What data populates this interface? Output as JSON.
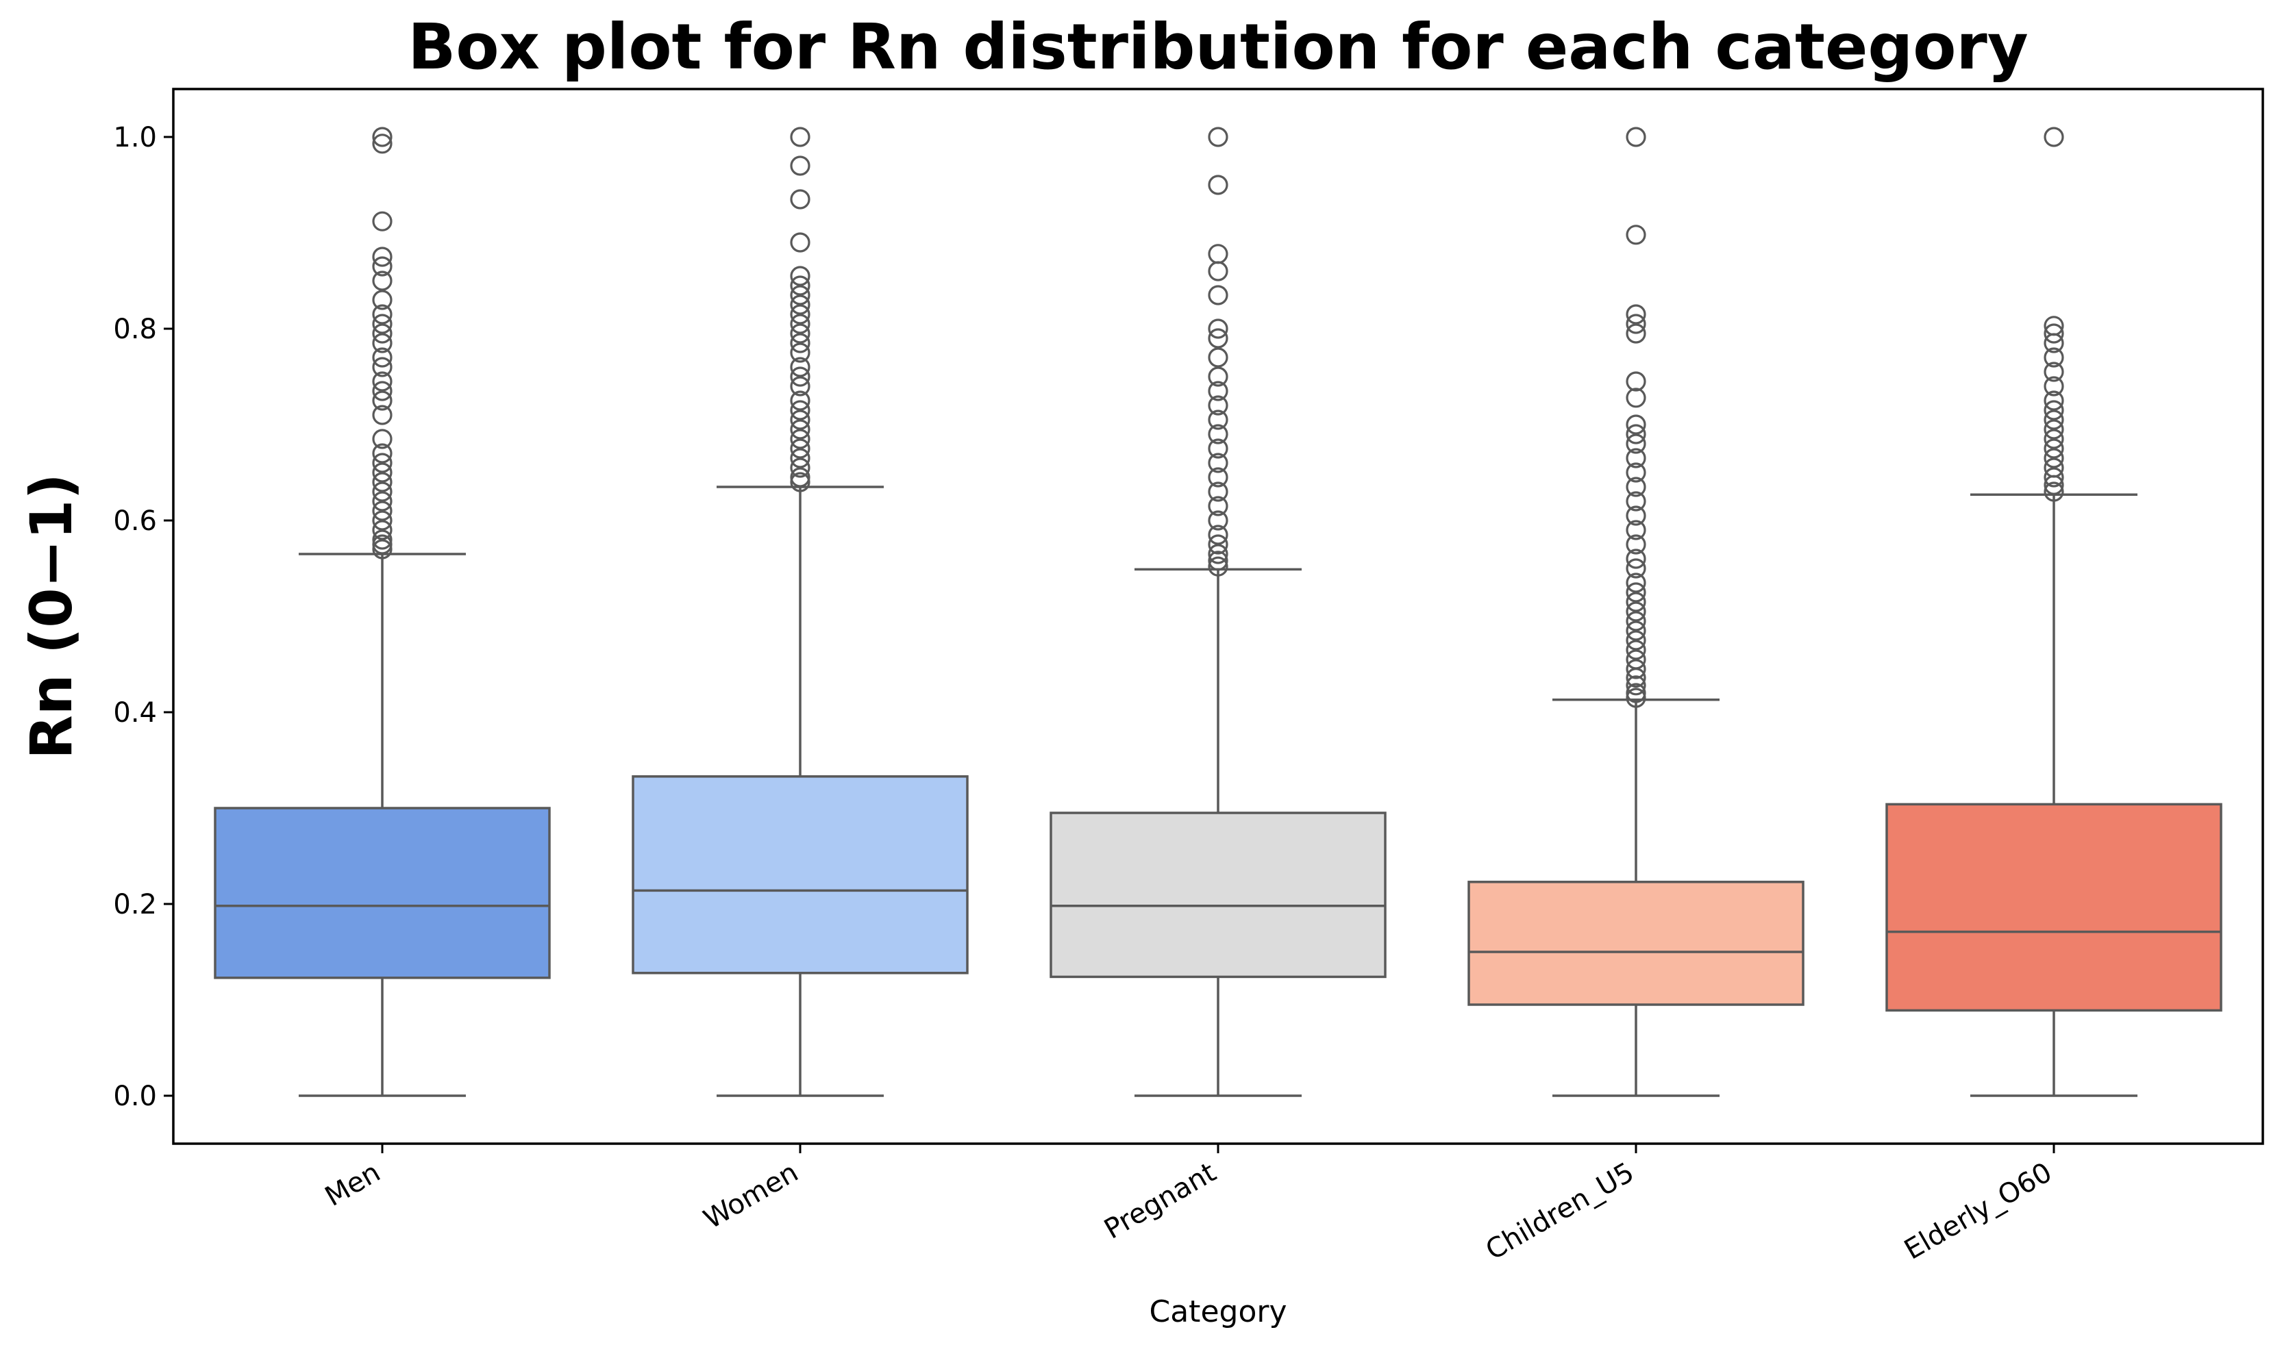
{
  "chart_data": {
    "type": "box",
    "title": "Box plot for Rn distribution for each category",
    "xlabel": "Category",
    "ylabel": "Rn (0−1)",
    "ylim": [
      -0.05,
      1.05
    ],
    "yticks": [
      {
        "value": 0.0,
        "label": "0.0"
      },
      {
        "value": 0.2,
        "label": "0.2"
      },
      {
        "value": 0.4,
        "label": "0.4"
      },
      {
        "value": 0.6,
        "label": "0.6"
      },
      {
        "value": 0.8,
        "label": "0.8"
      },
      {
        "value": 1.0,
        "label": "1.0"
      }
    ],
    "grid": false,
    "categories": [
      "Men",
      "Women",
      "Pregnant",
      "Children_U5",
      "Elderly_O60"
    ],
    "boxes": [
      {
        "name": "Men",
        "color": "#729ce3",
        "whisker_low": 0.0,
        "q1": 0.123,
        "median": 0.198,
        "q3": 0.3,
        "whisker_high": 0.565,
        "outliers": [
          0.57,
          0.575,
          0.58,
          0.59,
          0.6,
          0.61,
          0.62,
          0.63,
          0.64,
          0.65,
          0.66,
          0.67,
          0.685,
          0.71,
          0.725,
          0.735,
          0.745,
          0.76,
          0.77,
          0.785,
          0.795,
          0.805,
          0.815,
          0.83,
          0.85,
          0.865,
          0.875,
          0.912,
          0.993,
          1.0
        ]
      },
      {
        "name": "Women",
        "color": "#acc9f4",
        "whisker_low": 0.0,
        "q1": 0.128,
        "median": 0.214,
        "q3": 0.333,
        "whisker_high": 0.635,
        "outliers": [
          0.64,
          0.645,
          0.655,
          0.665,
          0.675,
          0.685,
          0.695,
          0.705,
          0.715,
          0.725,
          0.74,
          0.75,
          0.76,
          0.775,
          0.785,
          0.795,
          0.805,
          0.815,
          0.825,
          0.835,
          0.845,
          0.855,
          0.89,
          0.935,
          0.97,
          1.0
        ]
      },
      {
        "name": "Pregnant",
        "color": "#dcdcdc",
        "whisker_low": 0.0,
        "q1": 0.124,
        "median": 0.198,
        "q3": 0.295,
        "whisker_high": 0.549,
        "outliers": [
          0.552,
          0.558,
          0.565,
          0.575,
          0.585,
          0.6,
          0.615,
          0.63,
          0.645,
          0.66,
          0.675,
          0.69,
          0.705,
          0.72,
          0.735,
          0.75,
          0.77,
          0.79,
          0.8,
          0.835,
          0.86,
          0.878,
          0.95,
          1.0
        ]
      },
      {
        "name": "Children_U5",
        "color": "#f9b9a1",
        "whisker_low": 0.0,
        "q1": 0.095,
        "median": 0.15,
        "q3": 0.223,
        "whisker_high": 0.413,
        "outliers": [
          0.415,
          0.42,
          0.428,
          0.436,
          0.445,
          0.455,
          0.465,
          0.475,
          0.485,
          0.495,
          0.505,
          0.515,
          0.525,
          0.535,
          0.55,
          0.56,
          0.575,
          0.59,
          0.605,
          0.62,
          0.635,
          0.65,
          0.665,
          0.68,
          0.69,
          0.7,
          0.728,
          0.745,
          0.795,
          0.805,
          0.815,
          0.898,
          1.0
        ]
      },
      {
        "name": "Elderly_O60",
        "color": "#ee806b",
        "whisker_low": 0.0,
        "q1": 0.089,
        "median": 0.171,
        "q3": 0.304,
        "whisker_high": 0.627,
        "outliers": [
          0.63,
          0.637,
          0.645,
          0.655,
          0.665,
          0.675,
          0.685,
          0.695,
          0.705,
          0.715,
          0.725,
          0.74,
          0.755,
          0.77,
          0.785,
          0.795,
          0.803,
          1.0
        ]
      }
    ]
  }
}
